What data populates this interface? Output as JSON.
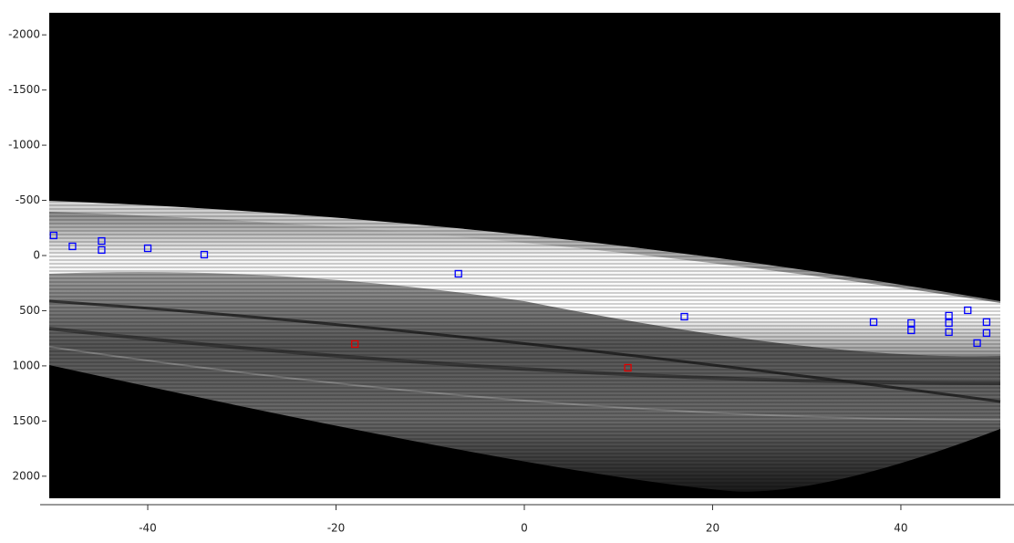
{
  "chart_data": {
    "type": "scatter",
    "xlim": [
      -51.5,
      52.5
    ],
    "ylim": [
      -2200,
      2200
    ],
    "y_reversed": true,
    "xticks": [
      -40,
      -20,
      0,
      20,
      40
    ],
    "yticks": [
      -2000,
      -1500,
      -1000,
      -500,
      0,
      500,
      1000,
      1500,
      2000
    ],
    "series": [
      {
        "color": "#0000ff",
        "x": [
          -50,
          -48,
          -44.9,
          -44.9,
          -40,
          -34,
          -7,
          17,
          37.1,
          41.1,
          41.1,
          45.1,
          45.1,
          45.1,
          47.1,
          49.1,
          49.1,
          48.1
        ],
        "values": [
          -182,
          -83,
          -132,
          -50,
          -66,
          -8,
          165,
          554,
          603,
          612,
          678,
          545,
          612,
          694,
          496,
          603,
          702,
          793
        ]
      },
      {
        "color": "#e00000",
        "x": [
          -18,
          11
        ],
        "values": [
          802,
          1017
        ]
      }
    ]
  }
}
